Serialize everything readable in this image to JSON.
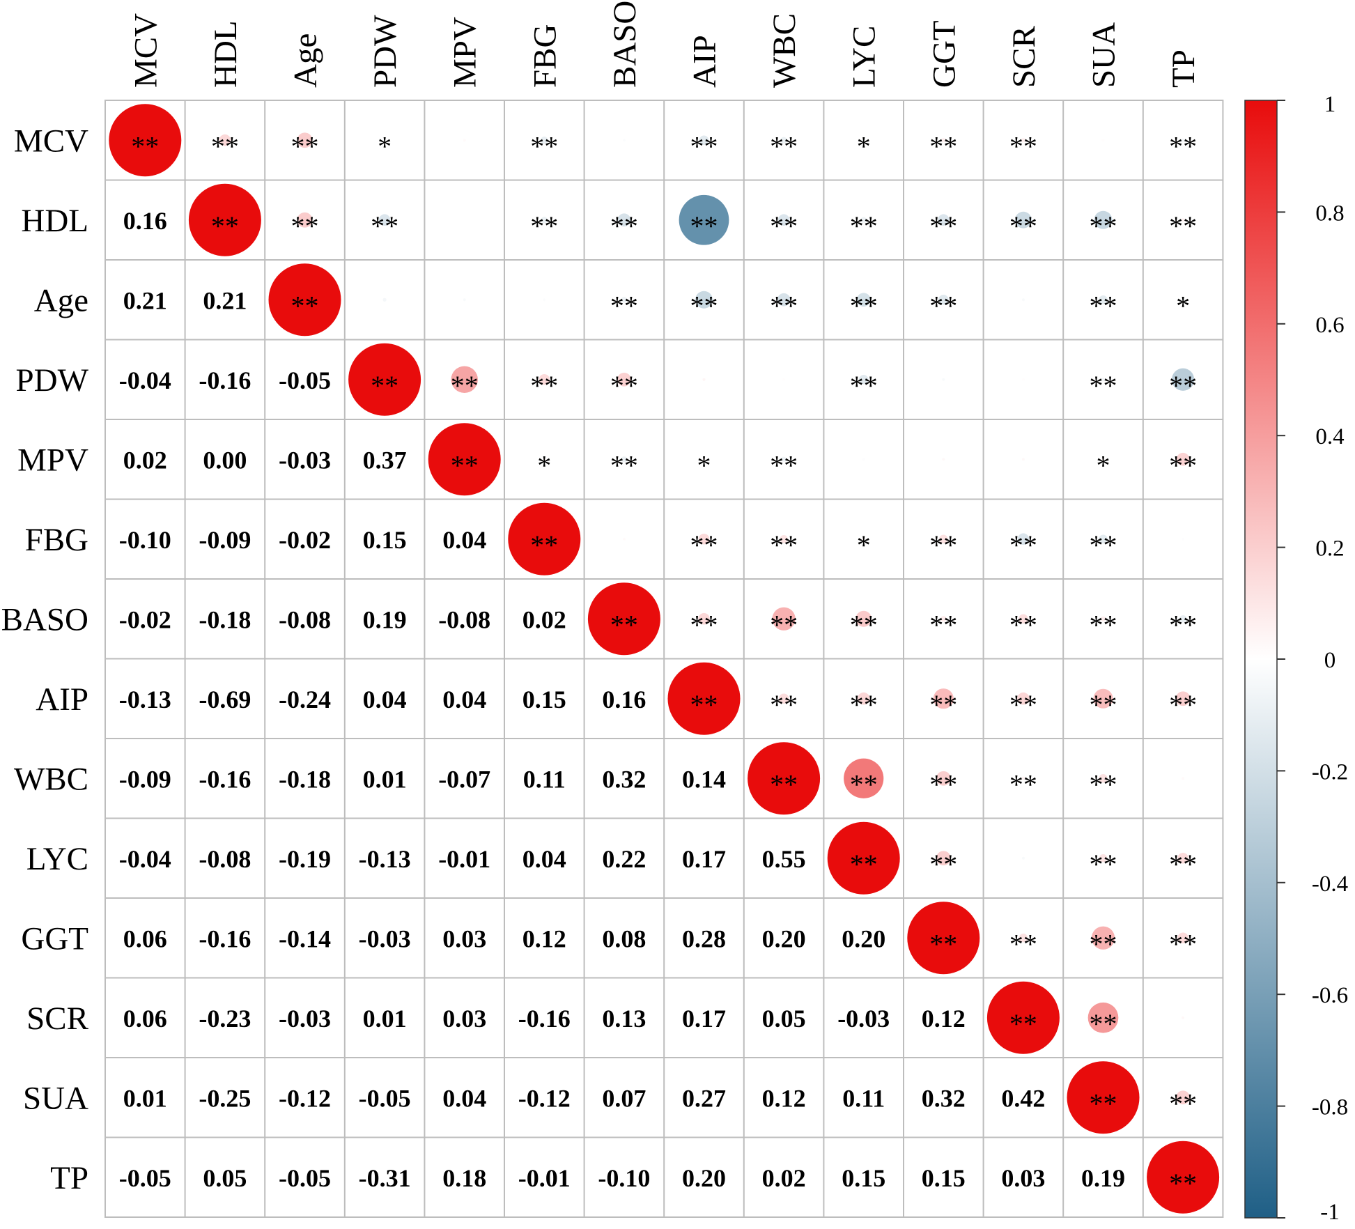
{
  "chart_data": {
    "type": "heatmap",
    "variables": [
      "MCV",
      "HDL",
      "Age",
      "PDW",
      "MPV",
      "FBG",
      "BASO",
      "AIP",
      "WBC",
      "LYC",
      "GGT",
      "SCR",
      "SUA",
      "TP"
    ],
    "lower_triangle_labels": [
      [],
      [
        "0.16"
      ],
      [
        "0.21",
        "0.21"
      ],
      [
        "-0.04",
        "-0.16",
        "-0.05"
      ],
      [
        "0.02",
        "0.00",
        "-0.03",
        "0.37"
      ],
      [
        "-0.10",
        "-0.09",
        "-0.02",
        "0.15",
        "0.04"
      ],
      [
        "-0.02",
        "-0.18",
        "-0.08",
        "0.19",
        "-0.08",
        "0.02"
      ],
      [
        "-0.13",
        "-0.69",
        "-0.24",
        "0.04",
        "0.04",
        "0.15",
        "0.16"
      ],
      [
        "-0.09",
        "-0.16",
        "-0.18",
        "0.01",
        "-0.07",
        "0.11",
        "0.32",
        "0.14"
      ],
      [
        "-0.04",
        "-0.08",
        "-0.19",
        "-0.13",
        "-0.01",
        "0.04",
        "0.22",
        "0.17",
        "0.55"
      ],
      [
        "0.06",
        "-0.16",
        "-0.14",
        "-0.03",
        "0.03",
        "0.12",
        "0.08",
        "0.28",
        "0.20",
        "0.20"
      ],
      [
        "0.06",
        "-0.23",
        "-0.03",
        "0.01",
        "0.03",
        "-0.16",
        "0.13",
        "0.17",
        "0.05",
        "-0.03",
        "0.12"
      ],
      [
        "0.01",
        "-0.25",
        "-0.12",
        "-0.05",
        "0.04",
        "-0.12",
        "0.07",
        "0.27",
        "0.12",
        "0.11",
        "0.32",
        "0.42"
      ],
      [
        "-0.05",
        "0.05",
        "-0.05",
        "-0.31",
        "0.18",
        "-0.01",
        "-0.10",
        "0.20",
        "0.02",
        "0.15",
        "0.15",
        "0.03",
        "0.19"
      ]
    ],
    "significance_upper": [
      [
        "**",
        "**",
        "**",
        "*",
        "",
        "**",
        "",
        "**",
        "**",
        "*",
        "**",
        "**",
        "",
        "**"
      ],
      [
        "",
        "**",
        "**",
        "**",
        "",
        "**",
        "**",
        "**",
        "**",
        "**",
        "**",
        "**",
        "**",
        "**"
      ],
      [
        "",
        "",
        "**",
        "",
        "",
        "",
        "**",
        "**",
        "**",
        "**",
        "**",
        "",
        "**",
        "*"
      ],
      [
        "",
        "",
        "",
        "**",
        "**",
        "**",
        "**",
        "",
        "",
        "**",
        "",
        "",
        "**",
        "**"
      ],
      [
        "",
        "",
        "",
        "",
        "**",
        "*",
        "**",
        "*",
        "**",
        "",
        "",
        "",
        "*",
        "**"
      ],
      [
        "",
        "",
        "",
        "",
        "",
        "**",
        "",
        "**",
        "**",
        "*",
        "**",
        "**",
        "**",
        ""
      ],
      [
        "",
        "",
        "",
        "",
        "",
        "",
        "**",
        "**",
        "**",
        "**",
        "**",
        "**",
        "**",
        "**"
      ],
      [
        "",
        "",
        "",
        "",
        "",
        "",
        "",
        "**",
        "**",
        "**",
        "**",
        "**",
        "**",
        "**"
      ],
      [
        "",
        "",
        "",
        "",
        "",
        "",
        "",
        "",
        "**",
        "**",
        "**",
        "**",
        "**",
        ""
      ],
      [
        "",
        "",
        "",
        "",
        "",
        "",
        "",
        "",
        "",
        "**",
        "**",
        "",
        "**",
        "**"
      ],
      [
        "",
        "",
        "",
        "",
        "",
        "",
        "",
        "",
        "",
        "",
        "**",
        "**",
        "**",
        "**"
      ],
      [
        "",
        "",
        "",
        "",
        "",
        "",
        "",
        "",
        "",
        "",
        "",
        "**",
        "**",
        ""
      ],
      [
        "",
        "",
        "",
        "",
        "",
        "",
        "",
        "",
        "",
        "",
        "",
        "",
        "**",
        "**"
      ],
      [
        "",
        "",
        "",
        "",
        "",
        "",
        "",
        "",
        "",
        "",
        "",
        "",
        "",
        "**"
      ]
    ],
    "colorbar": {
      "range": [
        -1,
        1
      ],
      "tick_labels": [
        "1",
        "0.8",
        "0.6",
        "0.4",
        "0.2",
        "0",
        "-0.2",
        "-0.4",
        "-0.6",
        "-0.8",
        "-1"
      ],
      "colors": {
        "negative": "#1f5f86",
        "zero": "#ffffff",
        "positive": "#e80c0c"
      }
    },
    "upper_triangle_shape": "circle",
    "grid": true,
    "legend_position": "right"
  }
}
